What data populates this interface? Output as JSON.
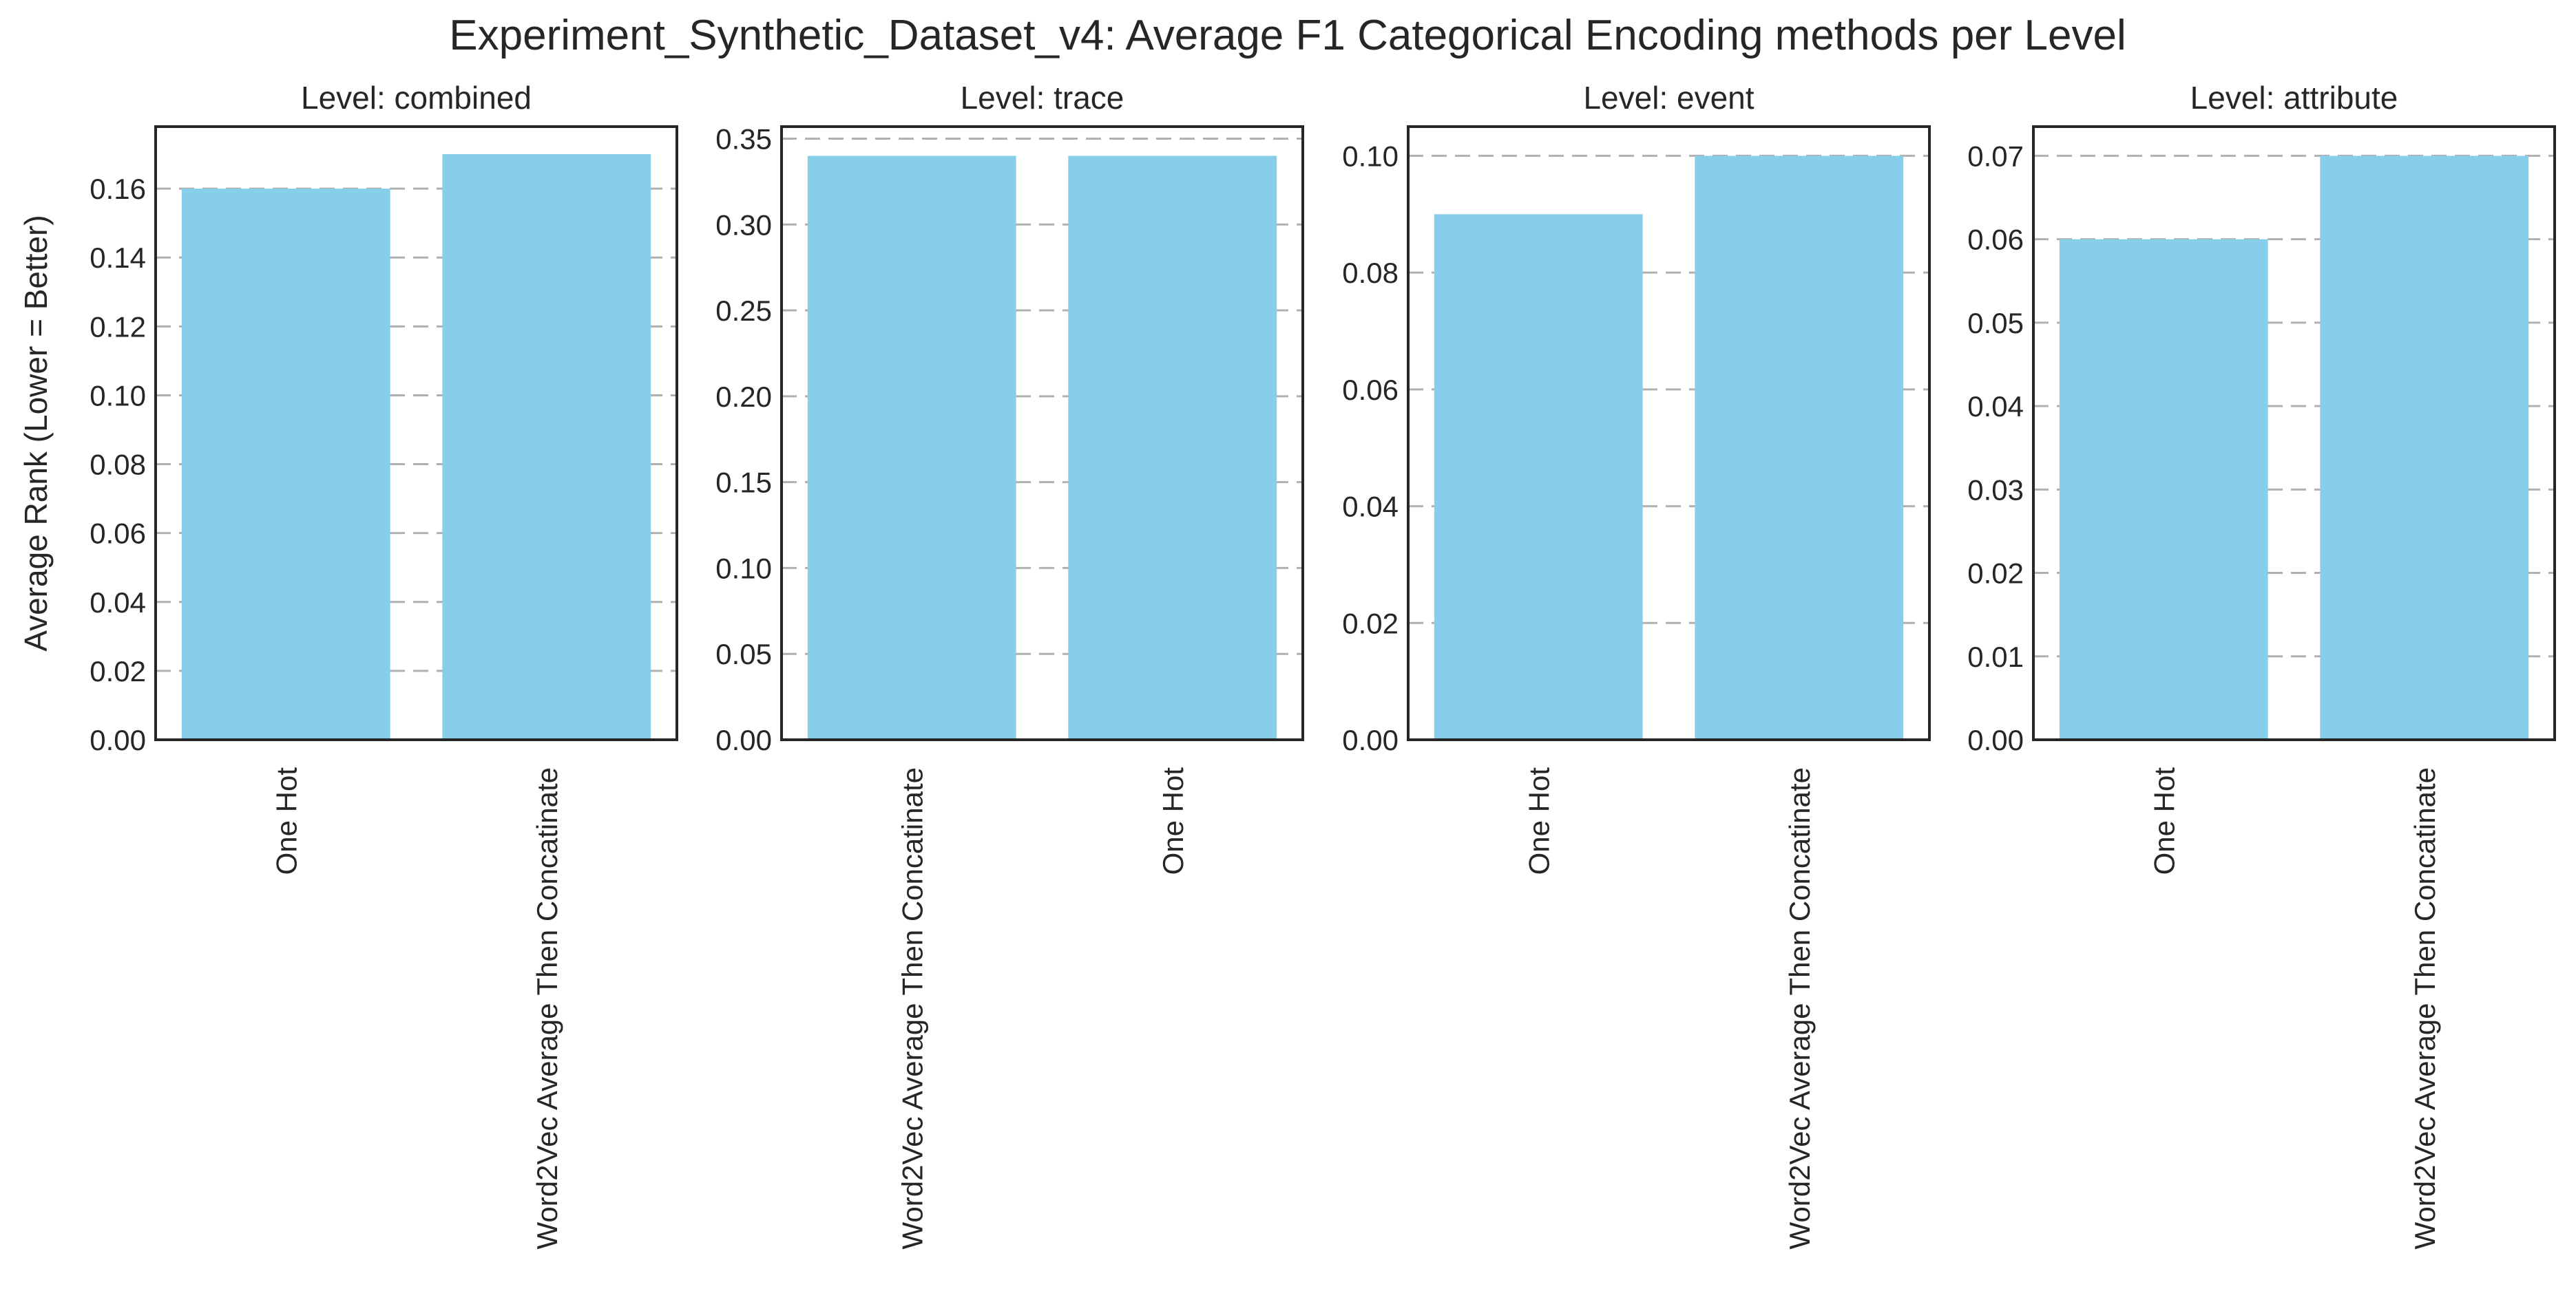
{
  "figure_title": "Experiment_Synthetic_Dataset_v4: Average F1 Categorical Encoding methods per Level",
  "colors": {
    "bar": "#87CEEB",
    "grid": "#b0b0b0",
    "frame": "#262626",
    "text": "#262626",
    "background": "#ffffff"
  },
  "chart_data": [
    {
      "type": "bar",
      "title": "Level: combined",
      "ylabel": "Average Rank (Lower = Better)",
      "xlabel": "",
      "categories": [
        "One Hot",
        "Word2Vec Average Then Concatinate"
      ],
      "values": [
        0.16,
        0.17
      ],
      "ylim": [
        0,
        0.178
      ],
      "yticks": [
        "0.00",
        "0.02",
        "0.04",
        "0.06",
        "0.08",
        "0.10",
        "0.12",
        "0.14",
        "0.16"
      ],
      "grid": "horizontal dashed"
    },
    {
      "type": "bar",
      "title": "Level: trace",
      "ylabel": "",
      "xlabel": "",
      "categories": [
        "Word2Vec Average Then Concatinate",
        "One Hot"
      ],
      "values": [
        0.34,
        0.34
      ],
      "ylim": [
        0,
        0.357
      ],
      "yticks": [
        "0.00",
        "0.05",
        "0.10",
        "0.15",
        "0.20",
        "0.25",
        "0.30",
        "0.35"
      ],
      "grid": "horizontal dashed"
    },
    {
      "type": "bar",
      "title": "Level: event",
      "ylabel": "",
      "xlabel": "",
      "categories": [
        "One Hot",
        "Word2Vec Average Then Concatinate"
      ],
      "values": [
        0.09,
        0.1
      ],
      "ylim": [
        0,
        0.105
      ],
      "yticks": [
        "0.00",
        "0.02",
        "0.04",
        "0.06",
        "0.08",
        "0.10"
      ],
      "grid": "horizontal dashed"
    },
    {
      "type": "bar",
      "title": "Level: attribute",
      "ylabel": "",
      "xlabel": "",
      "categories": [
        "One Hot",
        "Word2Vec Average Then Concatinate"
      ],
      "values": [
        0.06,
        0.07
      ],
      "ylim": [
        0,
        0.0735
      ],
      "yticks": [
        "0.00",
        "0.01",
        "0.02",
        "0.03",
        "0.04",
        "0.05",
        "0.06",
        "0.07"
      ],
      "grid": "horizontal dashed"
    }
  ]
}
